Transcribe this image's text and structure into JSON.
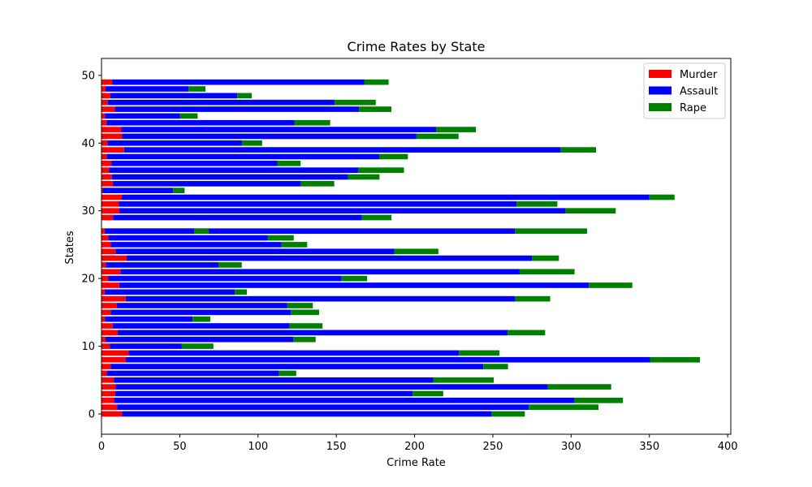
{
  "chart_data": {
    "type": "bar",
    "orientation": "horizontal",
    "stacked": true,
    "title": "Crime Rates by State",
    "xlabel": "Crime Rate",
    "ylabel": "States",
    "xlim": [
      0,
      402
    ],
    "ylim": [
      -3,
      52.5
    ],
    "x_ticks": [
      0,
      50,
      100,
      150,
      200,
      250,
      300,
      350,
      400
    ],
    "y_ticks": [
      0,
      10,
      20,
      30,
      40,
      50
    ],
    "grid": false,
    "legend_position": "top-right",
    "categories": [
      0,
      1,
      2,
      3,
      4,
      5,
      6,
      7,
      8,
      9,
      10,
      11,
      12,
      13,
      14,
      15,
      16,
      17,
      18,
      19,
      20,
      21,
      22,
      23,
      24,
      25,
      26,
      27,
      27,
      29,
      30,
      31,
      32,
      33,
      34,
      35,
      36,
      37,
      38,
      39,
      40,
      41,
      42,
      43,
      44,
      45,
      46,
      47,
      48,
      49
    ],
    "series": [
      {
        "name": "Murder",
        "color": "#ff0000",
        "values": [
          13.2,
          10,
          8.1,
          8.8,
          9,
          7.9,
          3.3,
          5.9,
          15.4,
          17.4,
          5.3,
          2.6,
          10.4,
          7.2,
          2.2,
          6,
          9.7,
          15.4,
          2.1,
          11.3,
          4.4,
          12.1,
          2.7,
          16.1,
          9,
          6,
          4.3,
          12.2,
          2.1,
          7.4,
          11.4,
          11.1,
          13,
          0.8,
          7.3,
          6.6,
          4.9,
          6.3,
          3.4,
          14.4,
          3.8,
          13.2,
          12.7,
          3.2,
          2.2,
          8.5,
          4,
          5.7,
          2.6,
          6.8
        ]
      },
      {
        "name": "Assault",
        "color": "#0000ff",
        "values": [
          236,
          263,
          294,
          190,
          276,
          204,
          110,
          238,
          335,
          211,
          46,
          120,
          249,
          113,
          56,
          115,
          109,
          249,
          83,
          300,
          149,
          255,
          72,
          259,
          178,
          109,
          102,
          252,
          57,
          159,
          285,
          254,
          337,
          45,
          120,
          151,
          159,
          106,
          174,
          279,
          86,
          188,
          201,
          120,
          48,
          156,
          145,
          81,
          53,
          161
        ]
      },
      {
        "name": "Rape",
        "color": "#008000",
        "values": [
          21.2,
          44.5,
          31,
          19.5,
          40.6,
          38.7,
          11.1,
          15.8,
          31.9,
          25.8,
          20.2,
          14.2,
          24,
          21,
          11.3,
          18,
          16.3,
          22.2,
          7.8,
          27.8,
          16.3,
          35.1,
          14.9,
          17.1,
          28.2,
          16.4,
          16.5,
          46,
          9.5,
          18.8,
          32.1,
          26.1,
          16.1,
          7.3,
          21.4,
          20,
          29.3,
          14.9,
          18.3,
          22.5,
          12.8,
          26.9,
          25.5,
          22.9,
          11.2,
          20.7,
          26.2,
          9.3,
          10.8,
          15.6
        ]
      }
    ]
  }
}
